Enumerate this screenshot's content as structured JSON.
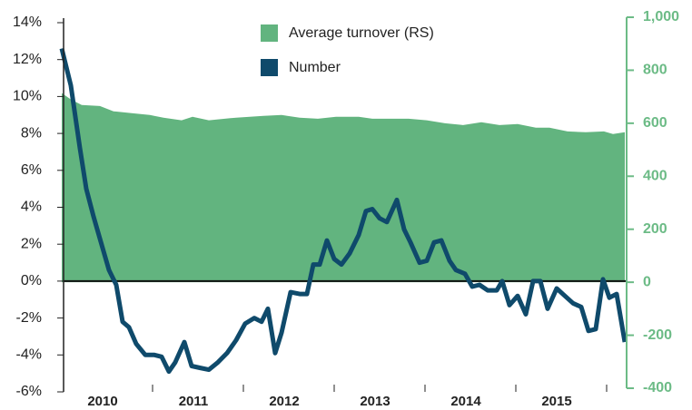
{
  "chart_data": {
    "type": "line",
    "legend": "top-center",
    "xlim": [
      2010,
      2016.2
    ],
    "xticks": [
      2010,
      2011,
      2012,
      2013,
      2014,
      2015
    ],
    "ylim": [
      -6,
      14
    ],
    "yticks": [
      {
        "value": -6,
        "label": "-6%"
      },
      {
        "value": -4,
        "label": "-4%"
      },
      {
        "value": -2,
        "label": "-2%"
      },
      {
        "value": 0,
        "label": "0%"
      },
      {
        "value": 2,
        "label": "2%"
      },
      {
        "value": 4,
        "label": "4%"
      },
      {
        "value": 6,
        "label": "6%"
      },
      {
        "value": 8,
        "label": "8%"
      },
      {
        "value": 10,
        "label": "10%"
      },
      {
        "value": 12,
        "label": "12%"
      },
      {
        "value": 14,
        "label": "14%"
      }
    ],
    "y2lim": [
      -400,
      1000
    ],
    "y2ticks": [
      -400,
      -200,
      0,
      200,
      400,
      600,
      800,
      {
        "value": 1000,
        "label": "1,000"
      }
    ],
    "series": [
      {
        "name": "Average turnover (RS)",
        "color": "#62b47f",
        "axis": "y2",
        "kind": "area",
        "x": [
          2010,
          2010.1,
          2010.22,
          2010.42,
          2010.57,
          2010.77,
          2010.97,
          2011.12,
          2011.32,
          2011.44,
          2011.62,
          2011.92,
          2012.22,
          2012.42,
          2012.62,
          2012.82,
          2013.02,
          2013.27,
          2013.42,
          2013.62,
          2013.82,
          2014.02,
          2014.22,
          2014.42,
          2014.62,
          2014.82,
          2015.02,
          2015.22,
          2015.37,
          2015.57,
          2015.77,
          2015.97,
          2016.07,
          2016.2
        ],
        "values": [
          714,
          690,
          669,
          665,
          645,
          638,
          631,
          621,
          611,
          624,
          611,
          621,
          628,
          631,
          621,
          617,
          624,
          624,
          617,
          617,
          617,
          611,
          600,
          593,
          604,
          593,
          597,
          583,
          583,
          569,
          566,
          569,
          559,
          566
        ]
      },
      {
        "name": "Number",
        "color": "#0f4a6b",
        "kind": "line",
        "x": [
          2010,
          2010.1,
          2010.2,
          2010.27,
          2010.35,
          2010.42,
          2010.52,
          2010.6,
          2010.67,
          2010.74,
          2010.82,
          2010.92,
          2011.02,
          2011.1,
          2011.18,
          2011.25,
          2011.35,
          2011.43,
          2011.52,
          2011.62,
          2011.72,
          2011.82,
          2011.92,
          2012.02,
          2012.12,
          2012.2,
          2012.27,
          2012.35,
          2012.42,
          2012.52,
          2012.62,
          2012.7,
          2012.77,
          2012.84,
          2012.92,
          2013,
          2013.08,
          2013.17,
          2013.27,
          2013.35,
          2013.42,
          2013.5,
          2013.58,
          2013.69,
          2013.77,
          2013.84,
          2013.94,
          2014.02,
          2014.1,
          2014.18,
          2014.27,
          2014.34,
          2014.44,
          2014.52,
          2014.6,
          2014.69,
          2014.79,
          2014.85,
          2014.93,
          2015.02,
          2015.11,
          2015.19,
          2015.27,
          2015.35,
          2015.45,
          2015.54,
          2015.63,
          2015.72,
          2015.8,
          2015.88,
          2015.96,
          2016.03,
          2016.11,
          2016.2
        ],
        "values": [
          12.6,
          10.6,
          7.2,
          5.0,
          3.5,
          2.3,
          0.6,
          -0.2,
          -2.2,
          -2.5,
          -3.4,
          -4.0,
          -4.0,
          -4.1,
          -4.9,
          -4.4,
          -3.3,
          -4.6,
          -4.7,
          -4.8,
          -4.4,
          -3.9,
          -3.2,
          -2.3,
          -2.0,
          -2.2,
          -1.5,
          -3.9,
          -2.8,
          -0.6,
          -0.7,
          -0.7,
          0.9,
          0.9,
          2.2,
          1.2,
          0.9,
          1.5,
          2.5,
          3.8,
          3.9,
          3.4,
          3.2,
          4.4,
          2.8,
          2.1,
          1.0,
          1.1,
          2.1,
          2.2,
          1.1,
          0.6,
          0.4,
          -0.3,
          -0.2,
          -0.5,
          -0.5,
          0.0,
          -1.3,
          -0.8,
          -1.8,
          0.0,
          0.0,
          -1.5,
          -0.4,
          -0.8,
          -1.2,
          -1.4,
          -2.7,
          -2.6,
          0.1,
          -0.9,
          -0.7,
          -3.3
        ]
      }
    ]
  }
}
